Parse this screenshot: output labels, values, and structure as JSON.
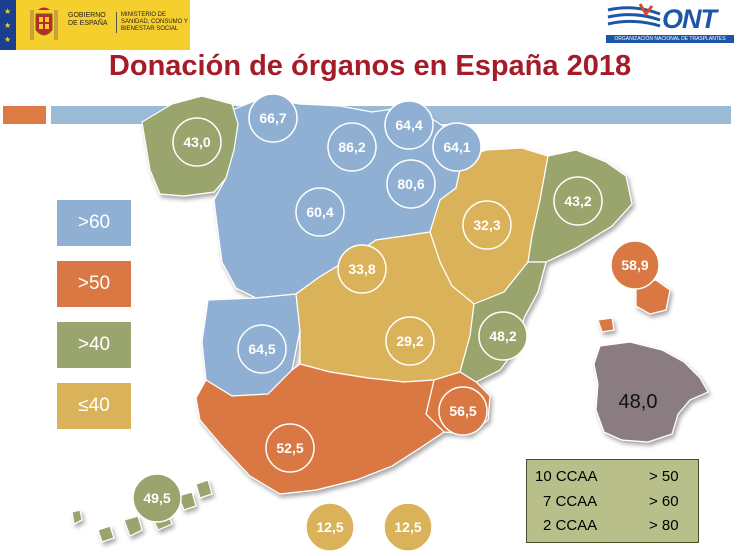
{
  "header": {
    "gov_line1": "GOBIERNO",
    "gov_line2": "DE ESPAÑA",
    "ministry": "MINISTERIO DE SANIDAD, CONSUMO Y BIENESTAR SOCIAL",
    "ont_logo": "ONT",
    "ont_full": "ORGANIZACIÓN NACIONAL DE TRASPLANTES"
  },
  "title": "Donación de órganos en España 2018",
  "colors": {
    "blue": "#8fb0d2",
    "orange": "#d97842",
    "green": "#9aa56e",
    "yellow": "#d9b25a",
    "grey": "#8a7c80",
    "title": "#a51b28"
  },
  "legend": [
    {
      "label": ">60",
      "color": "#8fb0d2"
    },
    {
      "label": ">50",
      "color": "#d97842"
    },
    {
      "label": ">40",
      "color": "#9aa56e"
    },
    {
      "label": "≤40",
      "color": "#d9b25a"
    }
  ],
  "regions": [
    {
      "name": "Galicia",
      "value": "43,0",
      "category": ">40"
    },
    {
      "name": "Asturias",
      "value": "66,7",
      "category": ">60"
    },
    {
      "name": "Cantabria",
      "value": "86,2",
      "category": ">60"
    },
    {
      "name": "País Vasco",
      "value": "64,4",
      "category": ">60"
    },
    {
      "name": "Navarra",
      "value": "64,1",
      "category": ">60"
    },
    {
      "name": "La Rioja",
      "value": "80,6",
      "category": ">60"
    },
    {
      "name": "Castilla y León",
      "value": "60,4",
      "category": ">60"
    },
    {
      "name": "Aragón",
      "value": "32,3",
      "category": "≤40"
    },
    {
      "name": "Cataluña",
      "value": "43,2",
      "category": ">40"
    },
    {
      "name": "Islas Baleares",
      "value": "58,9",
      "category": ">50"
    },
    {
      "name": "Madrid",
      "value": "33,8",
      "category": "≤40"
    },
    {
      "name": "Castilla-La Mancha",
      "value": "29,2",
      "category": "≤40"
    },
    {
      "name": "Comunidad Valenciana",
      "value": "48,2",
      "category": ">40"
    },
    {
      "name": "Extremadura",
      "value": "64,5",
      "category": ">60"
    },
    {
      "name": "Murcia",
      "value": "56,5",
      "category": ">50"
    },
    {
      "name": "Andalucía",
      "value": "52,5",
      "category": ">50"
    },
    {
      "name": "Canarias",
      "value": "49,5",
      "category": ">40"
    },
    {
      "name": "Ceuta",
      "value": "12,5",
      "category": "≤40"
    },
    {
      "name": "Melilla",
      "value": "12,5",
      "category": "≤40"
    }
  ],
  "national": {
    "value": "48,0"
  },
  "summary": [
    {
      "count": "10 CCAA",
      "threshold": "> 50"
    },
    {
      "count": "7 CCAA",
      "threshold": "> 60"
    },
    {
      "count": "2 CCAA",
      "threshold": "> 80"
    }
  ]
}
